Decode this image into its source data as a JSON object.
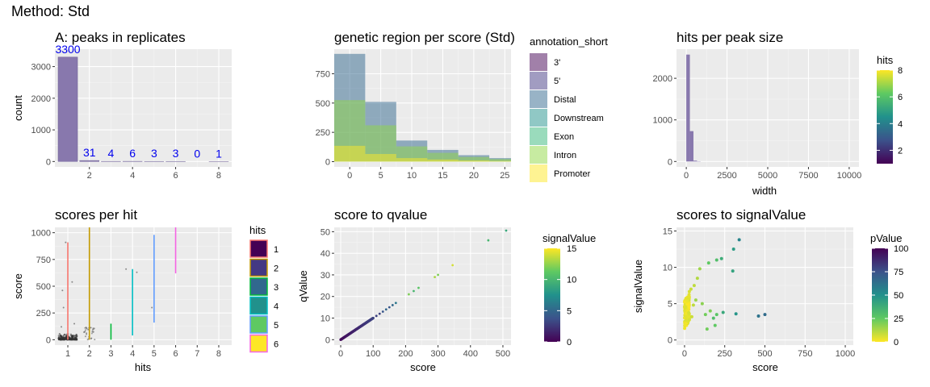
{
  "figure_title": "Method: Std",
  "chart_data": [
    {
      "id": "A",
      "type": "bar",
      "title": "A: peaks in replicates",
      "xlabel": "",
      "ylabel": "count",
      "xlim": [
        0.4,
        8.6
      ],
      "ylim": [
        -170,
        3550
      ],
      "xticks": [
        2,
        4,
        6,
        8
      ],
      "yticks": [
        0,
        1000,
        2000,
        3000
      ],
      "bar_color": "#8878ad",
      "x": [
        1,
        2,
        3,
        4,
        5,
        6,
        7,
        8
      ],
      "values": [
        3300,
        31,
        4,
        6,
        3,
        3,
        0,
        1
      ],
      "labels": [
        "3300",
        "31",
        "4",
        "6",
        "3",
        "3",
        "0",
        "1"
      ],
      "label_color": "#0000ee"
    },
    {
      "id": "B",
      "type": "area",
      "title": "genetic region per score (Std)",
      "xlabel": "",
      "ylabel": "",
      "xlim": [
        -2.5,
        26
      ],
      "ylim": [
        -45,
        960
      ],
      "xticks": [
        0,
        5,
        10,
        15,
        20,
        25
      ],
      "yticks": [
        0,
        250,
        500,
        750
      ],
      "bin_edges": [
        -2.5,
        2.5,
        7.5,
        12.5,
        17.5,
        22.5,
        26
      ],
      "legend_title": "annotation_short",
      "series": [
        {
          "name": "3'",
          "color": "#440154",
          "values": [
            0,
            0,
            0,
            0,
            0,
            0
          ]
        },
        {
          "name": "5'",
          "color": "#443983",
          "values": [
            0,
            0,
            0,
            0,
            0,
            0
          ]
        },
        {
          "name": "Distal",
          "color": "#31688e",
          "values": [
            920,
            510,
            180,
            100,
            55,
            30
          ]
        },
        {
          "name": "Downstream",
          "color": "#21918c",
          "values": [
            0,
            0,
            0,
            0,
            0,
            0
          ]
        },
        {
          "name": "Exon",
          "color": "#35b779",
          "values": [
            0,
            0,
            0,
            0,
            0,
            0
          ]
        },
        {
          "name": "Intron",
          "color": "#90d743",
          "values": [
            525,
            310,
            130,
            75,
            40,
            22
          ]
        },
        {
          "name": "Promoter",
          "color": "#fde725",
          "values": [
            135,
            65,
            30,
            18,
            10,
            6
          ]
        }
      ]
    },
    {
      "id": "C",
      "type": "bar",
      "title": "hits per peak size",
      "xlabel": "width",
      "ylabel": "",
      "xlim": [
        -600,
        10600
      ],
      "ylim": [
        -130,
        2700
      ],
      "xticks": [
        0,
        2500,
        5000,
        7500,
        10000
      ],
      "xtick_labels": [
        "0",
        "2500",
        "5000",
        "7500",
        "10000"
      ],
      "yticks": [
        0,
        1000,
        2000
      ],
      "bar_color": "#8878ad",
      "bins": [
        {
          "x0": 0,
          "x1": 220,
          "count": 2570
        },
        {
          "x0": 220,
          "x1": 440,
          "count": 730
        },
        {
          "x0": 440,
          "x1": 660,
          "count": 20
        },
        {
          "x0": 660,
          "x1": 880,
          "count": 6
        }
      ],
      "legend_title": "hits",
      "colorbar_ticks": [
        2,
        4,
        6,
        8
      ],
      "colorbar_range": [
        1,
        8
      ],
      "colorbar_palette": "viridis"
    },
    {
      "id": "D",
      "type": "scatter",
      "title": "scores per hit",
      "xlabel": "hits",
      "ylabel": "score",
      "xlim": [
        0.4,
        8.6
      ],
      "ylim": [
        -50,
        1050
      ],
      "xticks": [
        1,
        2,
        3,
        4,
        5,
        6,
        7,
        8
      ],
      "yticks": [
        0,
        250,
        500,
        750,
        1000
      ],
      "segments": [
        {
          "hits": 1,
          "ymin": 0,
          "ymax": 910,
          "color": "#f8766d"
        },
        {
          "hits": 2,
          "ymin": 0,
          "ymax": 1050,
          "color": "#c49a00"
        },
        {
          "hits": 3,
          "ymin": 0,
          "ymax": 150,
          "color": "#00ba38"
        },
        {
          "hits": 4,
          "ymin": 40,
          "ymax": 660,
          "color": "#00bfc4"
        },
        {
          "hits": 5,
          "ymin": 160,
          "ymax": 980,
          "color": "#619cff"
        },
        {
          "hits": 6,
          "ymin": 620,
          "ymax": 1050,
          "color": "#f564e3"
        }
      ],
      "legend_title": "hits",
      "legend_entries": [
        {
          "label": "1",
          "fill": "#440154",
          "border": "#f8766d"
        },
        {
          "label": "2",
          "fill": "#443983",
          "border": "#c49a00"
        },
        {
          "label": "3",
          "fill": "#31688e",
          "border": "#00ba38"
        },
        {
          "label": "4",
          "fill": "#21918c",
          "border": "#00bfc4"
        },
        {
          "label": "5",
          "fill": "#5ec962",
          "border": "#619cff"
        },
        {
          "label": "6",
          "fill": "#fde725",
          "border": "#f564e3"
        }
      ]
    },
    {
      "id": "E",
      "type": "scatter",
      "title": "score to qvalue",
      "xlabel": "score",
      "ylabel": "qValue",
      "xlim": [
        -20,
        525
      ],
      "ylim": [
        -2.5,
        52
      ],
      "xticks": [
        0,
        100,
        200,
        300,
        400,
        500
      ],
      "yticks": [
        0,
        10,
        20,
        30,
        40,
        50
      ],
      "points": [
        [
          455,
          46,
          10
        ],
        [
          510,
          50.5,
          9
        ],
        [
          345,
          34.5,
          14
        ],
        [
          300,
          30,
          12
        ],
        [
          290,
          29,
          13
        ],
        [
          240,
          24,
          11
        ],
        [
          225,
          22.5,
          10
        ],
        [
          210,
          21,
          12
        ],
        [
          170,
          17,
          6
        ],
        [
          160,
          16,
          5
        ],
        [
          150,
          15,
          4
        ],
        [
          140,
          14,
          5
        ],
        [
          130,
          13,
          4
        ],
        [
          120,
          12,
          3
        ],
        [
          110,
          11,
          3
        ]
      ],
      "line": {
        "x0": 0,
        "x1": 100,
        "y0": 0,
        "y1": 10
      },
      "legend_title": "signalValue",
      "colorbar_ticks": [
        0,
        5,
        10,
        15
      ],
      "colorbar_range": [
        0,
        15
      ],
      "colorbar_palette": "viridis"
    },
    {
      "id": "F",
      "type": "scatter",
      "title": "scores to signalValue",
      "xlabel": "score",
      "ylabel": "signalValue",
      "xlim": [
        -50,
        1050
      ],
      "ylim": [
        -0.7,
        15.5
      ],
      "xticks": [
        0,
        250,
        500,
        750,
        1000
      ],
      "yticks": [
        0,
        5,
        10,
        15
      ],
      "points": [
        [
          340,
          13.8,
          55
        ],
        [
          305,
          12.5,
          45
        ],
        [
          300,
          9.5,
          42
        ],
        [
          230,
          11.2,
          38
        ],
        [
          200,
          11.0,
          30
        ],
        [
          150,
          10.6,
          25
        ],
        [
          95,
          9.8,
          15
        ],
        [
          80,
          8.5,
          12
        ],
        [
          60,
          7.5,
          10
        ],
        [
          40,
          7.0,
          8
        ],
        [
          500,
          3.5,
          65
        ],
        [
          460,
          3.3,
          62
        ],
        [
          320,
          3.6,
          48
        ],
        [
          240,
          3.8,
          40
        ],
        [
          180,
          3.0,
          30
        ],
        [
          130,
          3.5,
          22
        ],
        [
          70,
          5.5,
          15
        ],
        [
          110,
          5.0,
          18
        ],
        [
          160,
          4.0,
          20
        ],
        [
          190,
          2.0,
          25
        ],
        [
          200,
          3.5,
          27
        ],
        [
          140,
          1.5,
          22
        ],
        [
          55,
          4.8,
          10
        ],
        [
          45,
          3.2,
          8
        ],
        [
          30,
          2.8,
          6
        ]
      ],
      "legend_title": "pValue",
      "colorbar_ticks": [
        0,
        25,
        50,
        75,
        100
      ],
      "colorbar_range": [
        0,
        100
      ],
      "colorbar_palette": "viridis-reversed"
    }
  ]
}
